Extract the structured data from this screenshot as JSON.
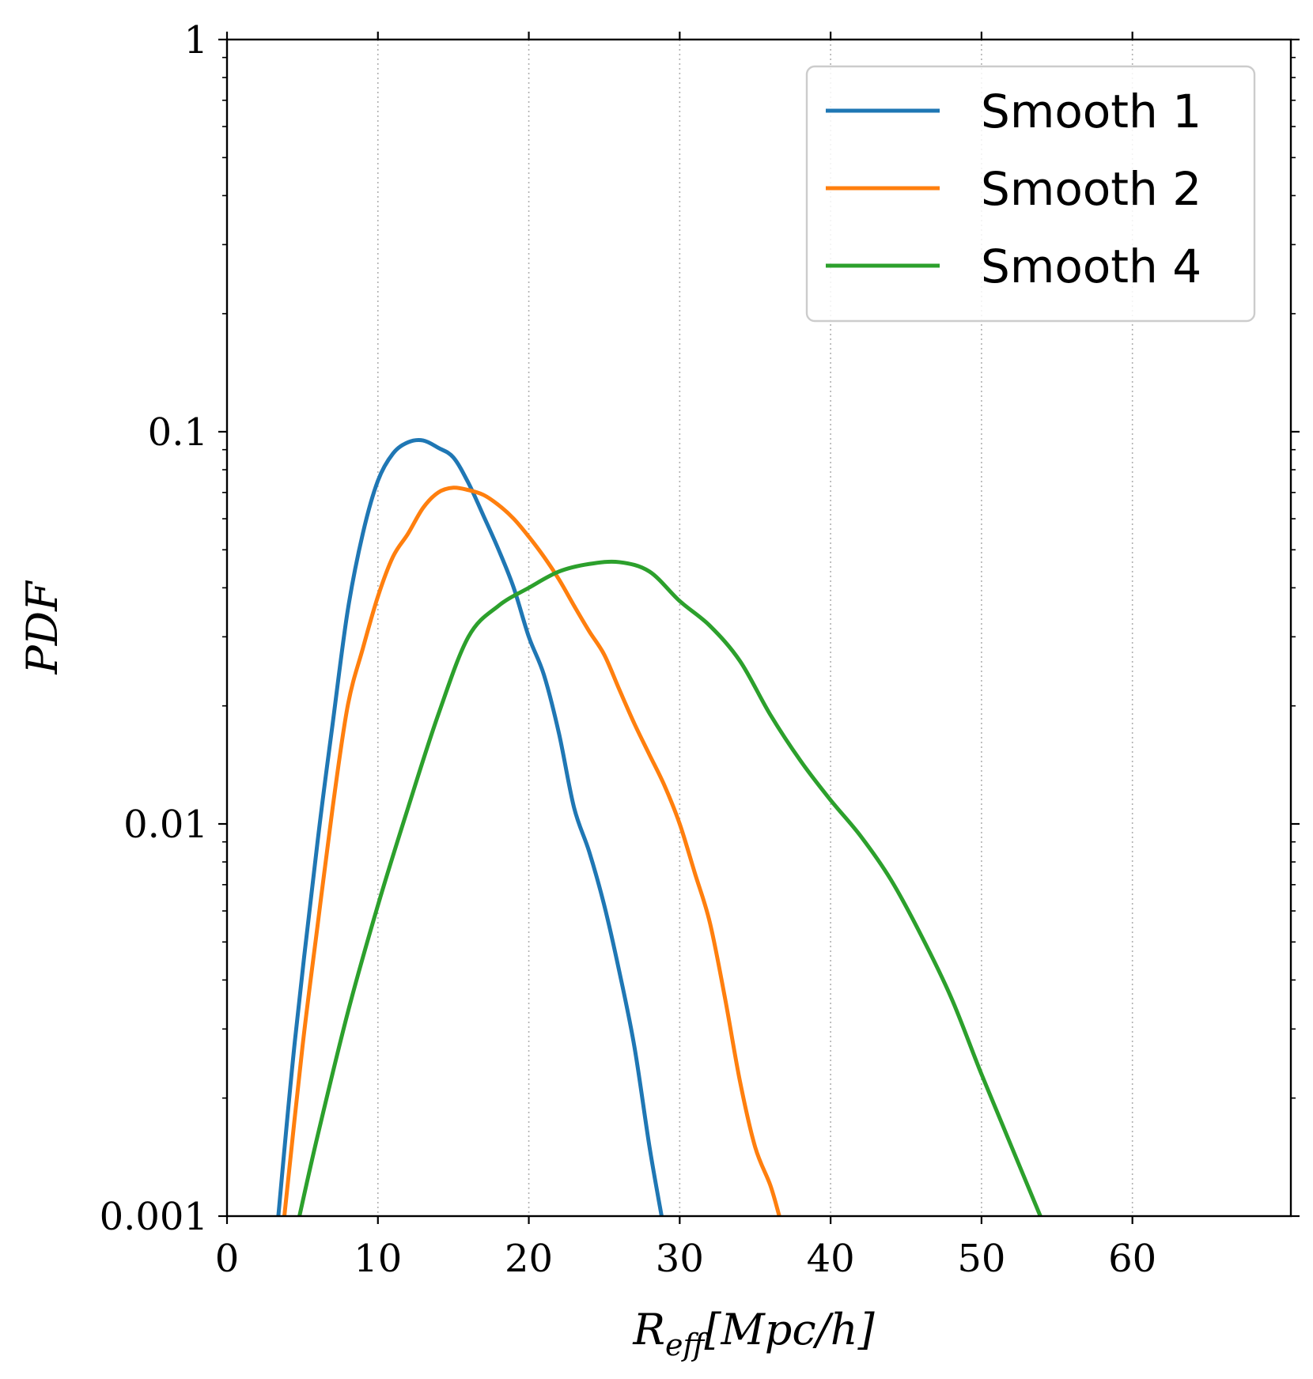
{
  "chart_data": {
    "type": "line",
    "xlabel": "R_eff[Mpc/h]",
    "xlabel_main": "R",
    "xlabel_sub": "eff",
    "xlabel_unit": "[Mpc/h]",
    "ylabel": "PDF",
    "xlim": [
      0,
      70.5
    ],
    "ylim": [
      0.001,
      1
    ],
    "yscale": "log",
    "x_ticks": [
      0,
      10,
      20,
      30,
      40,
      50,
      60
    ],
    "x_tick_labels": [
      "0",
      "10",
      "20",
      "30",
      "40",
      "50",
      "60"
    ],
    "y_ticks": [
      0.001,
      0.01,
      0.1,
      1
    ],
    "y_tick_labels": [
      "0.001",
      "0.01",
      "0.1",
      "1"
    ],
    "grid": "x-dotted",
    "legend_position": "top-right",
    "series": [
      {
        "name": "Smooth 1",
        "color": "#1f77b4",
        "x": [
          3.4,
          4.5,
          6,
          7,
          8,
          9,
          10,
          11,
          12,
          13,
          14,
          15,
          16,
          17,
          18,
          19,
          20,
          21,
          22,
          23,
          24,
          25,
          26,
          27,
          28,
          28.8
        ],
        "y": [
          0.001,
          0.0028,
          0.009,
          0.018,
          0.035,
          0.055,
          0.075,
          0.088,
          0.094,
          0.095,
          0.091,
          0.086,
          0.074,
          0.061,
          0.05,
          0.04,
          0.03,
          0.024,
          0.017,
          0.011,
          0.0085,
          0.0062,
          0.0042,
          0.0027,
          0.0015,
          0.001
        ]
      },
      {
        "name": "Smooth 2",
        "color": "#ff7f0e",
        "x": [
          3.8,
          5,
          6,
          7,
          8,
          9,
          10,
          11,
          12,
          13,
          14,
          15,
          16,
          17,
          18,
          19,
          20,
          21,
          22,
          23,
          24,
          25,
          26,
          27,
          28,
          29,
          30,
          31,
          32,
          33,
          34,
          35,
          36,
          36.6
        ],
        "y": [
          0.001,
          0.0027,
          0.0055,
          0.011,
          0.02,
          0.028,
          0.038,
          0.048,
          0.055,
          0.064,
          0.07,
          0.072,
          0.071,
          0.069,
          0.065,
          0.06,
          0.054,
          0.048,
          0.042,
          0.036,
          0.031,
          0.027,
          0.022,
          0.018,
          0.015,
          0.0125,
          0.01,
          0.0075,
          0.0056,
          0.0036,
          0.0022,
          0.0015,
          0.0012,
          0.001
        ]
      },
      {
        "name": "Smooth 4",
        "color": "#2ca02c",
        "x": [
          4.8,
          6,
          8,
          10,
          12,
          14,
          16,
          18,
          20,
          22,
          24,
          26,
          28,
          30,
          32,
          34,
          36,
          38,
          40,
          42,
          44,
          46,
          48,
          50,
          52,
          53.9
        ],
        "y": [
          0.001,
          0.0016,
          0.0033,
          0.0062,
          0.011,
          0.019,
          0.03,
          0.036,
          0.04,
          0.044,
          0.046,
          0.0465,
          0.044,
          0.037,
          0.032,
          0.026,
          0.019,
          0.0145,
          0.0115,
          0.0093,
          0.0072,
          0.0052,
          0.0036,
          0.0023,
          0.0015,
          0.001
        ]
      }
    ]
  }
}
